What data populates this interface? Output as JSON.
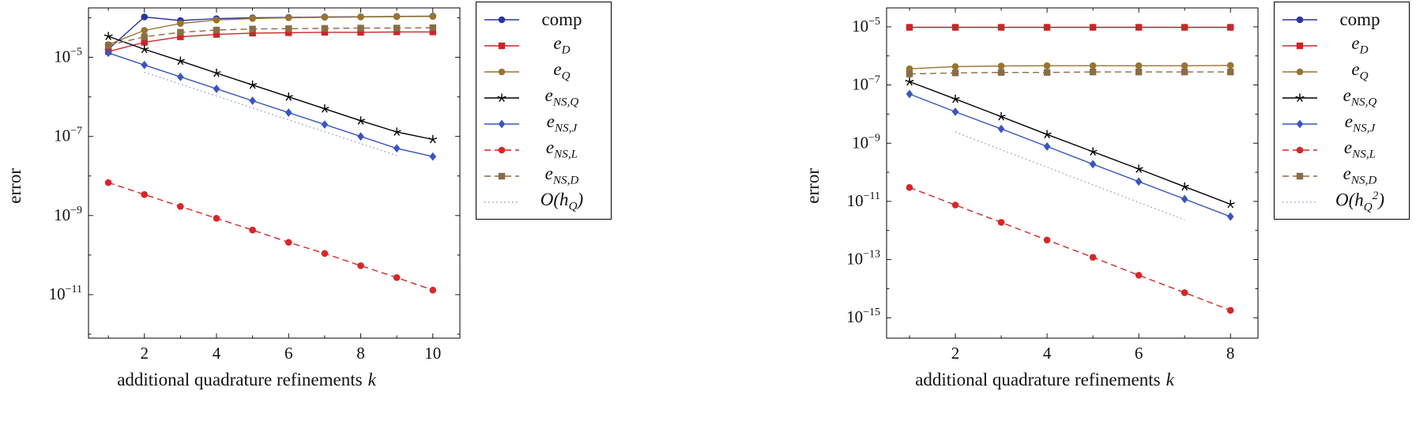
{
  "page": {
    "background": "#ffffff"
  },
  "chart_data": [
    {
      "type": "line",
      "ylabel": "error",
      "xlabel": "additional quadrature refinements k",
      "xlabel_main": "additional quadrature refinements",
      "xlabel_var": "k",
      "ylog": true,
      "legend_position": "outside-top-right",
      "x": [
        1,
        2,
        3,
        4,
        5,
        6,
        7,
        8,
        9,
        10
      ],
      "xlim": [
        0.45,
        10.75
      ],
      "xticks": [
        2,
        4,
        6,
        8,
        10
      ],
      "xminorticks": [
        1,
        3,
        5,
        7,
        9
      ],
      "ylim_exponents": [
        -12.1,
        -3.75
      ],
      "ytick_exponents": [
        -5,
        -7,
        -9,
        -11
      ],
      "series": [
        {
          "name": "comp",
          "label": "comp",
          "label_style": "roman",
          "color": "#2a35a0",
          "dash": "solid",
          "marker": "circle",
          "y": [
            1.6e-05,
            0.000105,
            8.5e-05,
            9.5e-05,
            0.0001,
            0.000102,
            0.000105,
            0.000106,
            0.000108,
            0.00011
          ]
        },
        {
          "name": "e_D",
          "label": "e_D",
          "label_style": "math",
          "color": "#cc2529",
          "dash": "solid",
          "marker": "square",
          "y": [
            1.4e-05,
            2.4e-05,
            3.3e-05,
            3.8e-05,
            4.1e-05,
            4.2e-05,
            4.3e-05,
            4.3e-05,
            4.4e-05,
            4.4e-05
          ]
        },
        {
          "name": "e_Q",
          "label": "e_Q",
          "label_style": "math",
          "color": "#98742f",
          "dash": "solid",
          "marker": "circle",
          "y": [
            2.1e-05,
            4.8e-05,
            7.2e-05,
            8.8e-05,
            9.6e-05,
            0.0001,
            0.000103,
            0.000105,
            0.000107,
            0.000108
          ]
        },
        {
          "name": "e_NS_Q",
          "label": "e_{NS,Q}",
          "label_style": "math",
          "color": "#000000",
          "dash": "solid",
          "marker": "star",
          "y": [
            3.4e-05,
            1.6e-05,
            8.1e-06,
            4e-06,
            2e-06,
            1e-06,
            5e-07,
            2.5e-07,
            1.3e-07,
            8.4e-08
          ]
        },
        {
          "name": "e_NS_J",
          "label": "e_{NS,J}",
          "label_style": "math",
          "color": "#3a55c0",
          "dash": "solid",
          "marker": "diamond",
          "y": [
            1.3e-05,
            6.4e-06,
            3.2e-06,
            1.6e-06,
            8e-07,
            4e-07,
            2e-07,
            1e-07,
            5e-08,
            3.1e-08
          ]
        },
        {
          "name": "e_NS_L",
          "label": "e_{NS,L}",
          "label_style": "math",
          "color": "#d62728",
          "dash": "dashed",
          "marker": "circle",
          "y": [
            6.8e-09,
            3.4e-09,
            1.7e-09,
            8.5e-10,
            4.3e-10,
            2.1e-10,
            1.1e-10,
            5.4e-11,
            2.7e-11,
            1.3e-11
          ]
        },
        {
          "name": "e_NS_D",
          "label": "e_{NS,D}",
          "label_style": "math",
          "color": "#8a6d45",
          "dash": "dashed",
          "marker": "square",
          "y": [
            2e-05,
            3.3e-05,
            4.3e-05,
            4.9e-05,
            5.2e-05,
            5.3e-05,
            5.4e-05,
            5.5e-05,
            5.5e-05,
            5.6e-05
          ]
        },
        {
          "name": "O_hQ",
          "label": "O(h_Q)",
          "label_style": "math",
          "color": "#9aa3cc",
          "dash": "dotted",
          "marker": "none",
          "x": [
            2,
            9
          ],
          "y": [
            4.2e-06,
            3.3e-08
          ]
        }
      ]
    },
    {
      "type": "line",
      "ylabel": "error",
      "xlabel": "additional quadrature refinements k",
      "xlabel_main": "additional quadrature refinements",
      "xlabel_var": "k",
      "ylog": true,
      "legend_position": "outside-top-right",
      "x": [
        1,
        2,
        3,
        4,
        5,
        6,
        7,
        8
      ],
      "xlim": [
        0.5,
        8.6
      ],
      "xticks": [
        2,
        4,
        6,
        8
      ],
      "xminorticks": [
        1,
        3,
        5,
        7
      ],
      "ylim_exponents": [
        -15.7,
        -4.35
      ],
      "ytick_exponents": [
        -5,
        -7,
        -9,
        -11,
        -13,
        -15
      ],
      "series": [
        {
          "name": "comp",
          "label": "comp",
          "label_style": "roman",
          "color": "#2a35a0",
          "dash": "solid",
          "marker": "circle",
          "y": [
            9.6e-06,
            9.6e-06,
            9.6e-06,
            9.6e-06,
            9.6e-06,
            9.6e-06,
            9.6e-06,
            9.6e-06
          ]
        },
        {
          "name": "e_D",
          "label": "e_D",
          "label_style": "math",
          "color": "#cc2529",
          "dash": "solid",
          "marker": "square",
          "y": [
            9.6e-06,
            9.6e-06,
            9.6e-06,
            9.6e-06,
            9.6e-06,
            9.6e-06,
            9.6e-06,
            9.6e-06
          ]
        },
        {
          "name": "e_Q",
          "label": "e_Q",
          "label_style": "math",
          "color": "#98742f",
          "dash": "solid",
          "marker": "circle",
          "y": [
            3.6e-07,
            4.3e-07,
            4.5e-07,
            4.6e-07,
            4.6e-07,
            4.6e-07,
            4.6e-07,
            4.7e-07
          ]
        },
        {
          "name": "e_NS_Q",
          "label": "e_{NS,Q}",
          "label_style": "math",
          "color": "#000000",
          "dash": "solid",
          "marker": "star",
          "y": [
            1.3e-07,
            3.3e-08,
            8.2e-09,
            2e-09,
            5.1e-10,
            1.3e-10,
            3.2e-11,
            8e-12
          ]
        },
        {
          "name": "e_NS_J",
          "label": "e_{NS,J}",
          "label_style": "math",
          "color": "#3a55c0",
          "dash": "solid",
          "marker": "diamond",
          "y": [
            4.9e-08,
            1.2e-08,
            3.1e-09,
            7.7e-10,
            1.9e-10,
            4.8e-11,
            1.2e-11,
            3e-12
          ]
        },
        {
          "name": "e_NS_L",
          "label": "e_{NS,L}",
          "label_style": "math",
          "color": "#d62728",
          "dash": "dashed",
          "marker": "circle",
          "y": [
            3e-11,
            7.5e-12,
            1.9e-12,
            4.7e-13,
            1.2e-13,
            2.9e-14,
            7.3e-15,
            1.8e-15
          ]
        },
        {
          "name": "e_NS_D",
          "label": "e_{NS,D}",
          "label_style": "math",
          "color": "#8a6d45",
          "dash": "dashed",
          "marker": "square",
          "y": [
            2.4e-07,
            2.6e-07,
            2.7e-07,
            2.7e-07,
            2.8e-07,
            2.8e-07,
            2.8e-07,
            2.8e-07
          ]
        },
        {
          "name": "O_hQ2",
          "label": "O(h_Q^2)",
          "label_style": "math",
          "color": "#9aa3cc",
          "dash": "dotted",
          "marker": "none",
          "x": [
            2,
            7
          ],
          "y": [
            2.4e-09,
            2.3e-12
          ]
        }
      ]
    }
  ]
}
